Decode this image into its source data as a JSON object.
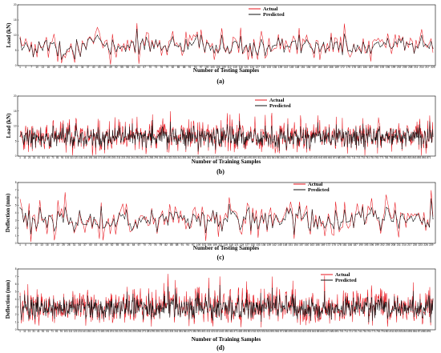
{
  "colors": {
    "actual": "#e8141c",
    "predicted": "#111111",
    "frame": "#000000",
    "background": "#ffffff"
  },
  "chart_data": [
    {
      "type": "line",
      "panel_label": "(a)",
      "xlabel": "Number of Testing Samples",
      "ylabel": "Load (kN)",
      "ylim": [
        0,
        20
      ],
      "yticks": [
        0,
        5,
        10,
        15,
        20
      ],
      "x_count": 220,
      "legend_placement": "top-right",
      "series": [
        {
          "name": "Actual",
          "style": "red line"
        },
        {
          "name": "Predicted",
          "style": "black line with markers"
        }
      ],
      "profile": {
        "actual_mean": 6.5,
        "actual_spread": 3.5,
        "actual_max": 14.5,
        "predicted_mean": 6.3,
        "predicted_spread": 2.4
      }
    },
    {
      "type": "line",
      "panel_label": "(b)",
      "xlabel": "Number of Training Samples",
      "ylabel": "Load (kN)",
      "ylim": [
        0,
        20
      ],
      "yticks": [
        0,
        5,
        10,
        15,
        20
      ],
      "x_count": 880,
      "legend_placement": "top-right",
      "series": [
        {
          "name": "Actual",
          "style": "red line"
        },
        {
          "name": "Predicted",
          "style": "black line with markers"
        }
      ],
      "profile": {
        "actual_mean": 6.5,
        "actual_spread": 3.6,
        "actual_max": 15,
        "predicted_mean": 6.3,
        "predicted_spread": 2.5
      }
    },
    {
      "type": "line",
      "panel_label": "(c)",
      "xlabel": "Number of Testing Samples",
      "ylabel": "Deflection (mm)",
      "ylim": [
        0,
        8
      ],
      "yticks": [
        0,
        1,
        2,
        3,
        4,
        5,
        6,
        7,
        8
      ],
      "x_count": 230,
      "legend_placement": "top-right",
      "series": [
        {
          "name": "Actual",
          "style": "red line"
        },
        {
          "name": "Predicted",
          "style": "black line with markers"
        }
      ],
      "profile": {
        "actual_mean": 3.2,
        "actual_spread": 1.7,
        "actual_max": 7.2,
        "predicted_mean": 3.1,
        "predicted_spread": 1.2
      }
    },
    {
      "type": "line",
      "panel_label": "(d)",
      "xlabel": "Number of Training Samples",
      "ylabel": "Deflection (mm)",
      "ylim": [
        0,
        8
      ],
      "yticks": [
        0,
        1,
        2,
        3,
        4,
        5,
        6,
        7,
        8
      ],
      "x_count": 900,
      "legend_placement": "top-right",
      "series": [
        {
          "name": "Actual",
          "style": "red line"
        },
        {
          "name": "Predicted",
          "style": "black line with markers"
        }
      ],
      "profile": {
        "actual_mean": 3.0,
        "actual_spread": 1.6,
        "actual_max": 7.4,
        "predicted_mean": 2.9,
        "predicted_spread": 1.1
      }
    }
  ]
}
